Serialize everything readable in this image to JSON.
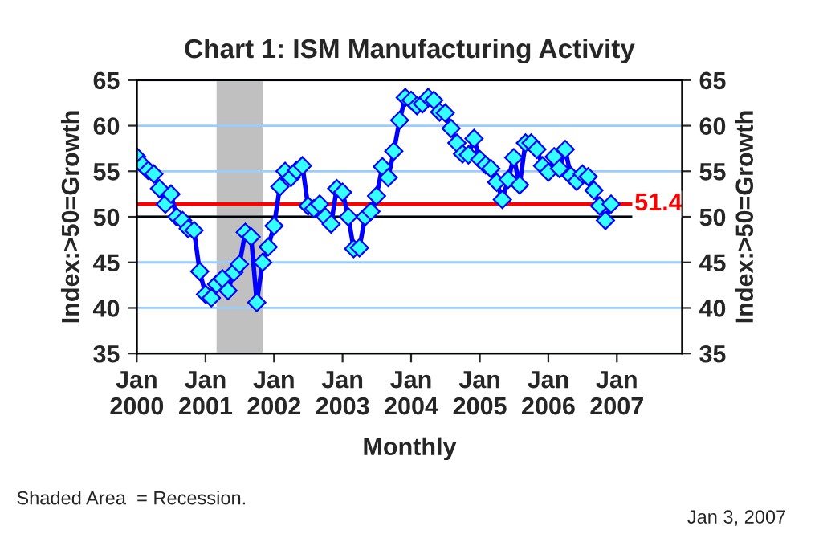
{
  "chart_data": {
    "type": "line",
    "title": "Chart 1: ISM Manufacturing Activity",
    "xlabel": "Monthly",
    "ylabel": "Index:>50=Growth",
    "y2label": "Index:>50=Growth",
    "x": [
      "2000-01",
      "2000-02",
      "2000-03",
      "2000-04",
      "2000-05",
      "2000-06",
      "2000-07",
      "2000-08",
      "2000-09",
      "2000-10",
      "2000-11",
      "2000-12",
      "2001-01",
      "2001-02",
      "2001-03",
      "2001-04",
      "2001-05",
      "2001-06",
      "2001-07",
      "2001-08",
      "2001-09",
      "2001-10",
      "2001-11",
      "2001-12",
      "2002-01",
      "2002-02",
      "2002-03",
      "2002-04",
      "2002-05",
      "2002-06",
      "2002-07",
      "2002-08",
      "2002-09",
      "2002-10",
      "2002-11",
      "2002-12",
      "2003-01",
      "2003-02",
      "2003-03",
      "2003-04",
      "2003-05",
      "2003-06",
      "2003-07",
      "2003-08",
      "2003-09",
      "2003-10",
      "2003-11",
      "2003-12",
      "2004-01",
      "2004-02",
      "2004-03",
      "2004-04",
      "2004-05",
      "2004-06",
      "2004-07",
      "2004-08",
      "2004-09",
      "2004-10",
      "2004-11",
      "2004-12",
      "2005-01",
      "2005-02",
      "2005-03",
      "2005-04",
      "2005-05",
      "2005-06",
      "2005-07",
      "2005-08",
      "2005-09",
      "2005-10",
      "2005-11",
      "2005-12",
      "2006-01",
      "2006-02",
      "2006-03",
      "2006-04",
      "2006-05",
      "2006-06",
      "2006-07",
      "2006-08",
      "2006-09",
      "2006-10",
      "2006-11",
      "2006-12"
    ],
    "series": [
      {
        "color": "#0000ff",
        "values": [
          56.6,
          55.7,
          55.1,
          54.7,
          53.1,
          51.4,
          52.5,
          50.0,
          49.6,
          48.7,
          48.5,
          44.0,
          41.5,
          41.1,
          42.6,
          43.2,
          41.9,
          43.9,
          44.8,
          48.3,
          47.8,
          40.6,
          45.0,
          46.7,
          49.0,
          53.3,
          55.0,
          54.3,
          55.1,
          55.6,
          51.2,
          50.9,
          51.4,
          50.0,
          49.2,
          53.1,
          52.7,
          50.0,
          46.5,
          46.6,
          50.0,
          50.6,
          52.3,
          55.5,
          54.3,
          57.2,
          60.6,
          63.1,
          62.8,
          62.2,
          62.4,
          63.1,
          62.8,
          61.5,
          61.4,
          59.7,
          58.1,
          56.9,
          56.8,
          58.6,
          56.3,
          55.7,
          55.3,
          53.8,
          51.9,
          54.1,
          56.5,
          53.5,
          58.1,
          58.1,
          57.4,
          55.6,
          54.9,
          56.6,
          55.3,
          57.4,
          54.5,
          53.9,
          54.7,
          54.4,
          52.9,
          51.2,
          49.6,
          51.4
        ]
      }
    ],
    "xlim": [
      "2000-01",
      "2007-12-15"
    ],
    "xticks": [
      {
        "value": "2000-01",
        "label": "Jan\n2000"
      },
      {
        "value": "2001-01",
        "label": "Jan\n2001"
      },
      {
        "value": "2002-01",
        "label": "Jan\n2002"
      },
      {
        "value": "2003-01",
        "label": "Jan\n2003"
      },
      {
        "value": "2004-01",
        "label": "Jan\n2004"
      },
      {
        "value": "2005-01",
        "label": "Jan\n2005"
      },
      {
        "value": "2006-01",
        "label": "Jan\n2006"
      },
      {
        "value": "2007-01",
        "label": "Jan\n2007"
      }
    ],
    "ylim": [
      35,
      65
    ],
    "yticks": [
      35,
      40,
      45,
      50,
      55,
      60,
      65
    ],
    "y2lim": [
      35,
      65
    ],
    "y2ticks": [
      35,
      40,
      45,
      50,
      55,
      60,
      65
    ],
    "bands": [
      {
        "axis": "x",
        "from": "2001-03",
        "to": "2001-11",
        "color": "#c0c0c0"
      }
    ],
    "ref_lines": [
      {
        "axis": "y",
        "value": 51.4,
        "label": "51.4",
        "color": "#ff0000"
      },
      {
        "axis": "y",
        "value": 50,
        "color": "#000000"
      }
    ],
    "grid": "y",
    "marker": "diamond",
    "line_style": "solid",
    "legend": false,
    "annotations": [
      "Shaded Area  = Recession.",
      "Jan 3, 2007"
    ]
  }
}
